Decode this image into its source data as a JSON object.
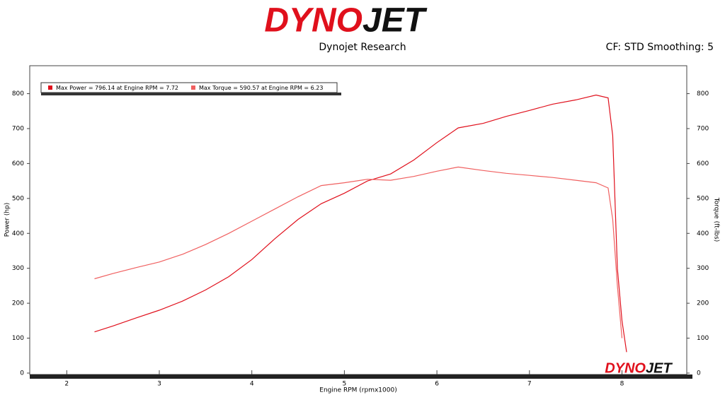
{
  "chart_data": {
    "type": "line",
    "logo": [
      "DYNO",
      "JET"
    ],
    "title": "Dynojet Research",
    "subtitle": "CF: STD Smoothing: 5",
    "xlabel": "Engine RPM (rpmx1000)",
    "ylabel": "Power (hp)",
    "y2label": "Torque (ft-lbs)",
    "xlim": [
      1.6,
      8.7
    ],
    "xticks": [
      2,
      3,
      4,
      5,
      6,
      7,
      8
    ],
    "ylim": [
      0,
      880
    ],
    "yticks": [
      0,
      100,
      200,
      300,
      400,
      500,
      600,
      700,
      800
    ],
    "y2lim": [
      0,
      880
    ],
    "y2ticks": [
      0,
      100,
      200,
      300,
      400,
      500,
      600,
      700,
      800
    ],
    "x": [
      2.3,
      2.5,
      2.75,
      3,
      3.25,
      3.5,
      3.75,
      4,
      4.25,
      4.5,
      4.75,
      5,
      5.25,
      5.5,
      5.75,
      6,
      6.23,
      6.5,
      6.75,
      7,
      7.25,
      7.5,
      7.72,
      7.85,
      7.9,
      7.95,
      8.0,
      8.05
    ],
    "series": [
      {
        "name": "Max Power = 796.14 at Engine RPM = 7.72",
        "color": "#e0101c",
        "values": [
          118,
          135,
          158,
          180,
          206,
          238,
          276,
          325,
          385,
          440,
          485,
          515,
          550,
          570,
          610,
          660,
          702,
          715,
          735,
          752,
          770,
          782,
          796,
          788,
          680,
          300,
          150,
          60
        ]
      },
      {
        "name": "Max Torque = 590.57 at Engine RPM = 6.23",
        "color": "#f06060",
        "axis": "y2",
        "values": [
          270,
          285,
          302,
          318,
          340,
          368,
          400,
          435,
          470,
          505,
          537,
          545,
          555,
          552,
          563,
          578,
          590,
          580,
          572,
          566,
          560,
          552,
          545,
          530,
          440,
          250,
          100,
          null
        ]
      }
    ]
  }
}
